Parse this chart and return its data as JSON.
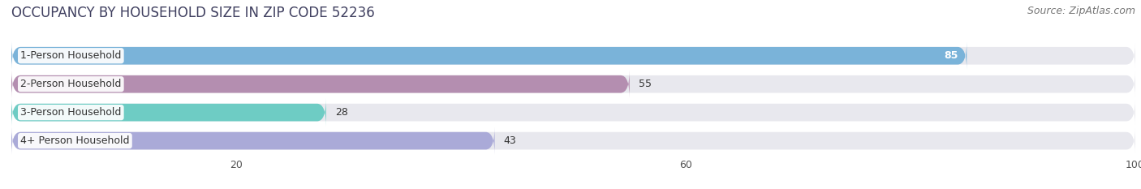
{
  "title": "OCCUPANCY BY HOUSEHOLD SIZE IN ZIP CODE 52236",
  "source": "Source: ZipAtlas.com",
  "categories": [
    "1-Person Household",
    "2-Person Household",
    "3-Person Household",
    "4+ Person Household"
  ],
  "values": [
    85,
    55,
    28,
    43
  ],
  "bar_colors": [
    "#7ab3d9",
    "#b48eb0",
    "#6eccc4",
    "#aaaad8"
  ],
  "bar_label_colors": [
    "white",
    "black",
    "black",
    "black"
  ],
  "xlim": [
    0,
    100
  ],
  "xticks": [
    20,
    60,
    100
  ],
  "background_color": "#ffffff",
  "bar_bg_color": "#e8e8ee",
  "title_color": "#404060",
  "title_fontsize": 12,
  "source_fontsize": 9,
  "label_fontsize": 9,
  "value_fontsize": 9
}
